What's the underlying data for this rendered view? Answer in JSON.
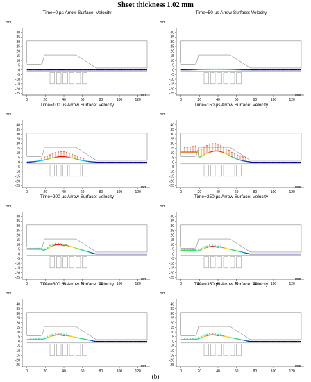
{
  "title": "Sheet thickness 1.02 mm",
  "caption": "(b)",
  "y_unit": "mm",
  "x_unit": "mm",
  "y_ticks": [
    "40",
    "35",
    "30",
    "25",
    "20",
    "15",
    "10",
    "5",
    "0",
    "-5",
    "-10",
    "-15",
    "-20",
    "-25"
  ],
  "x_ticks": [
    "0",
    "20",
    "40",
    "60",
    "80",
    "100",
    "120"
  ],
  "panels": [
    {
      "title": "Time=0 µs   Arrow Surface: Velocity"
    },
    {
      "title": "Time=50 µs   Arrow Surface: Velocity"
    },
    {
      "title": "Time=100 µs   Arrow Surface: Velocity"
    },
    {
      "title": "Time=150 µs   Arrow Surface: Velocity"
    },
    {
      "title": "Time=200 µs   Arrow Surface: Velocity"
    },
    {
      "title": "Time=250 µs   Arrow Surface: Velocity"
    },
    {
      "title": "Time=300 µs   Arrow Surface: Velocity"
    },
    {
      "title": "Time=350 µs   Arrow Surface: Velocity"
    }
  ],
  "colors": {
    "sheet_low": "#00008b",
    "sheet_mid": "#00c8ff",
    "sheet_high": "#e00000",
    "frame": "#888888"
  }
}
